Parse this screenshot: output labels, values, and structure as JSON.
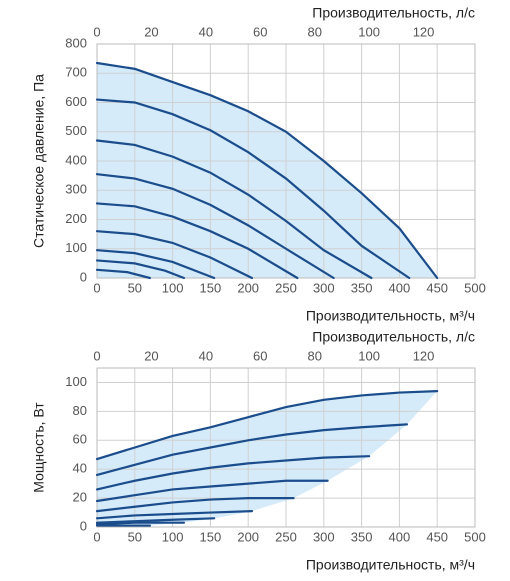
{
  "chart_data": [
    {
      "type": "line",
      "color": "#1b4d8c",
      "fill": "#d5ebfa",
      "grid": true,
      "y_label": "Статическое давление, Па",
      "x_label": "Производительность, м³/ч",
      "x2_label": "Производительность, л/с",
      "xlim": [
        0,
        500
      ],
      "xticks": [
        0,
        50,
        100,
        150,
        200,
        250,
        300,
        350,
        400,
        450,
        500
      ],
      "x2lim": [
        0,
        138.9
      ],
      "x2ticks": [
        0,
        20,
        40,
        60,
        80,
        100,
        120
      ],
      "ylim": [
        0,
        800
      ],
      "yticks": [
        0,
        100,
        200,
        300,
        400,
        500,
        600,
        700,
        800
      ],
      "series": [
        {
          "x": [
            0,
            50,
            100,
            150,
            200,
            250,
            300,
            350,
            400,
            450
          ],
          "values": [
            735,
            715,
            670,
            625,
            570,
            500,
            400,
            290,
            170,
            0
          ]
        },
        {
          "x": [
            0,
            50,
            100,
            150,
            200,
            250,
            300,
            350,
            413
          ],
          "values": [
            610,
            600,
            560,
            505,
            430,
            340,
            230,
            110,
            0
          ]
        },
        {
          "x": [
            0,
            50,
            100,
            150,
            200,
            250,
            300,
            363
          ],
          "values": [
            470,
            455,
            415,
            360,
            285,
            195,
            95,
            0
          ]
        },
        {
          "x": [
            0,
            50,
            100,
            150,
            200,
            250,
            313
          ],
          "values": [
            355,
            340,
            305,
            250,
            180,
            100,
            0
          ]
        },
        {
          "x": [
            0,
            50,
            100,
            150,
            200,
            265
          ],
          "values": [
            255,
            245,
            210,
            160,
            100,
            0
          ]
        },
        {
          "x": [
            0,
            50,
            100,
            150,
            205
          ],
          "values": [
            160,
            150,
            120,
            70,
            0
          ]
        },
        {
          "x": [
            0,
            50,
            100,
            155
          ],
          "values": [
            95,
            85,
            55,
            0
          ]
        },
        {
          "x": [
            0,
            50,
            90,
            115
          ],
          "values": [
            60,
            50,
            25,
            0
          ]
        },
        {
          "x": [
            0,
            40,
            70
          ],
          "values": [
            28,
            20,
            0
          ]
        }
      ]
    },
    {
      "type": "line",
      "color": "#1b4d8c",
      "fill": "#d5ebfa",
      "grid": true,
      "y_label": "Мощность, Вт",
      "x_label": "Производительность, м³/ч",
      "x2_label": "Производительность, л/с",
      "xlim": [
        0,
        500
      ],
      "xticks": [
        0,
        50,
        100,
        150,
        200,
        250,
        300,
        350,
        400,
        450,
        500
      ],
      "x2lim": [
        0,
        138.9
      ],
      "x2ticks": [
        0,
        20,
        40,
        60,
        80,
        100,
        120
      ],
      "ylim": [
        0,
        110
      ],
      "yticks": [
        0,
        20,
        40,
        60,
        80,
        100
      ],
      "series": [
        {
          "x": [
            0,
            50,
            100,
            150,
            200,
            250,
            300,
            350,
            400,
            450
          ],
          "values": [
            47,
            55,
            63,
            69,
            76,
            83,
            88,
            91,
            93,
            94
          ]
        },
        {
          "x": [
            0,
            50,
            100,
            150,
            200,
            250,
            300,
            350,
            410
          ],
          "values": [
            36,
            43,
            50,
            55,
            60,
            64,
            67,
            69,
            71
          ]
        },
        {
          "x": [
            0,
            50,
            100,
            150,
            200,
            250,
            300,
            360
          ],
          "values": [
            26,
            32,
            37,
            41,
            44,
            46,
            48,
            49
          ]
        },
        {
          "x": [
            0,
            50,
            100,
            150,
            200,
            250,
            305
          ],
          "values": [
            18,
            22,
            26,
            28,
            30,
            32,
            32
          ]
        },
        {
          "x": [
            0,
            50,
            100,
            150,
            200,
            260
          ],
          "values": [
            11,
            14,
            17,
            19,
            20,
            20
          ]
        },
        {
          "x": [
            0,
            50,
            100,
            150,
            205
          ],
          "values": [
            6,
            8,
            9,
            10,
            11
          ]
        },
        {
          "x": [
            0,
            50,
            100,
            155
          ],
          "values": [
            3,
            4,
            5,
            6
          ]
        },
        {
          "x": [
            0,
            50,
            115
          ],
          "values": [
            2,
            3,
            3
          ]
        },
        {
          "x": [
            0,
            50,
            70
          ],
          "values": [
            1,
            1,
            1
          ]
        }
      ]
    }
  ]
}
